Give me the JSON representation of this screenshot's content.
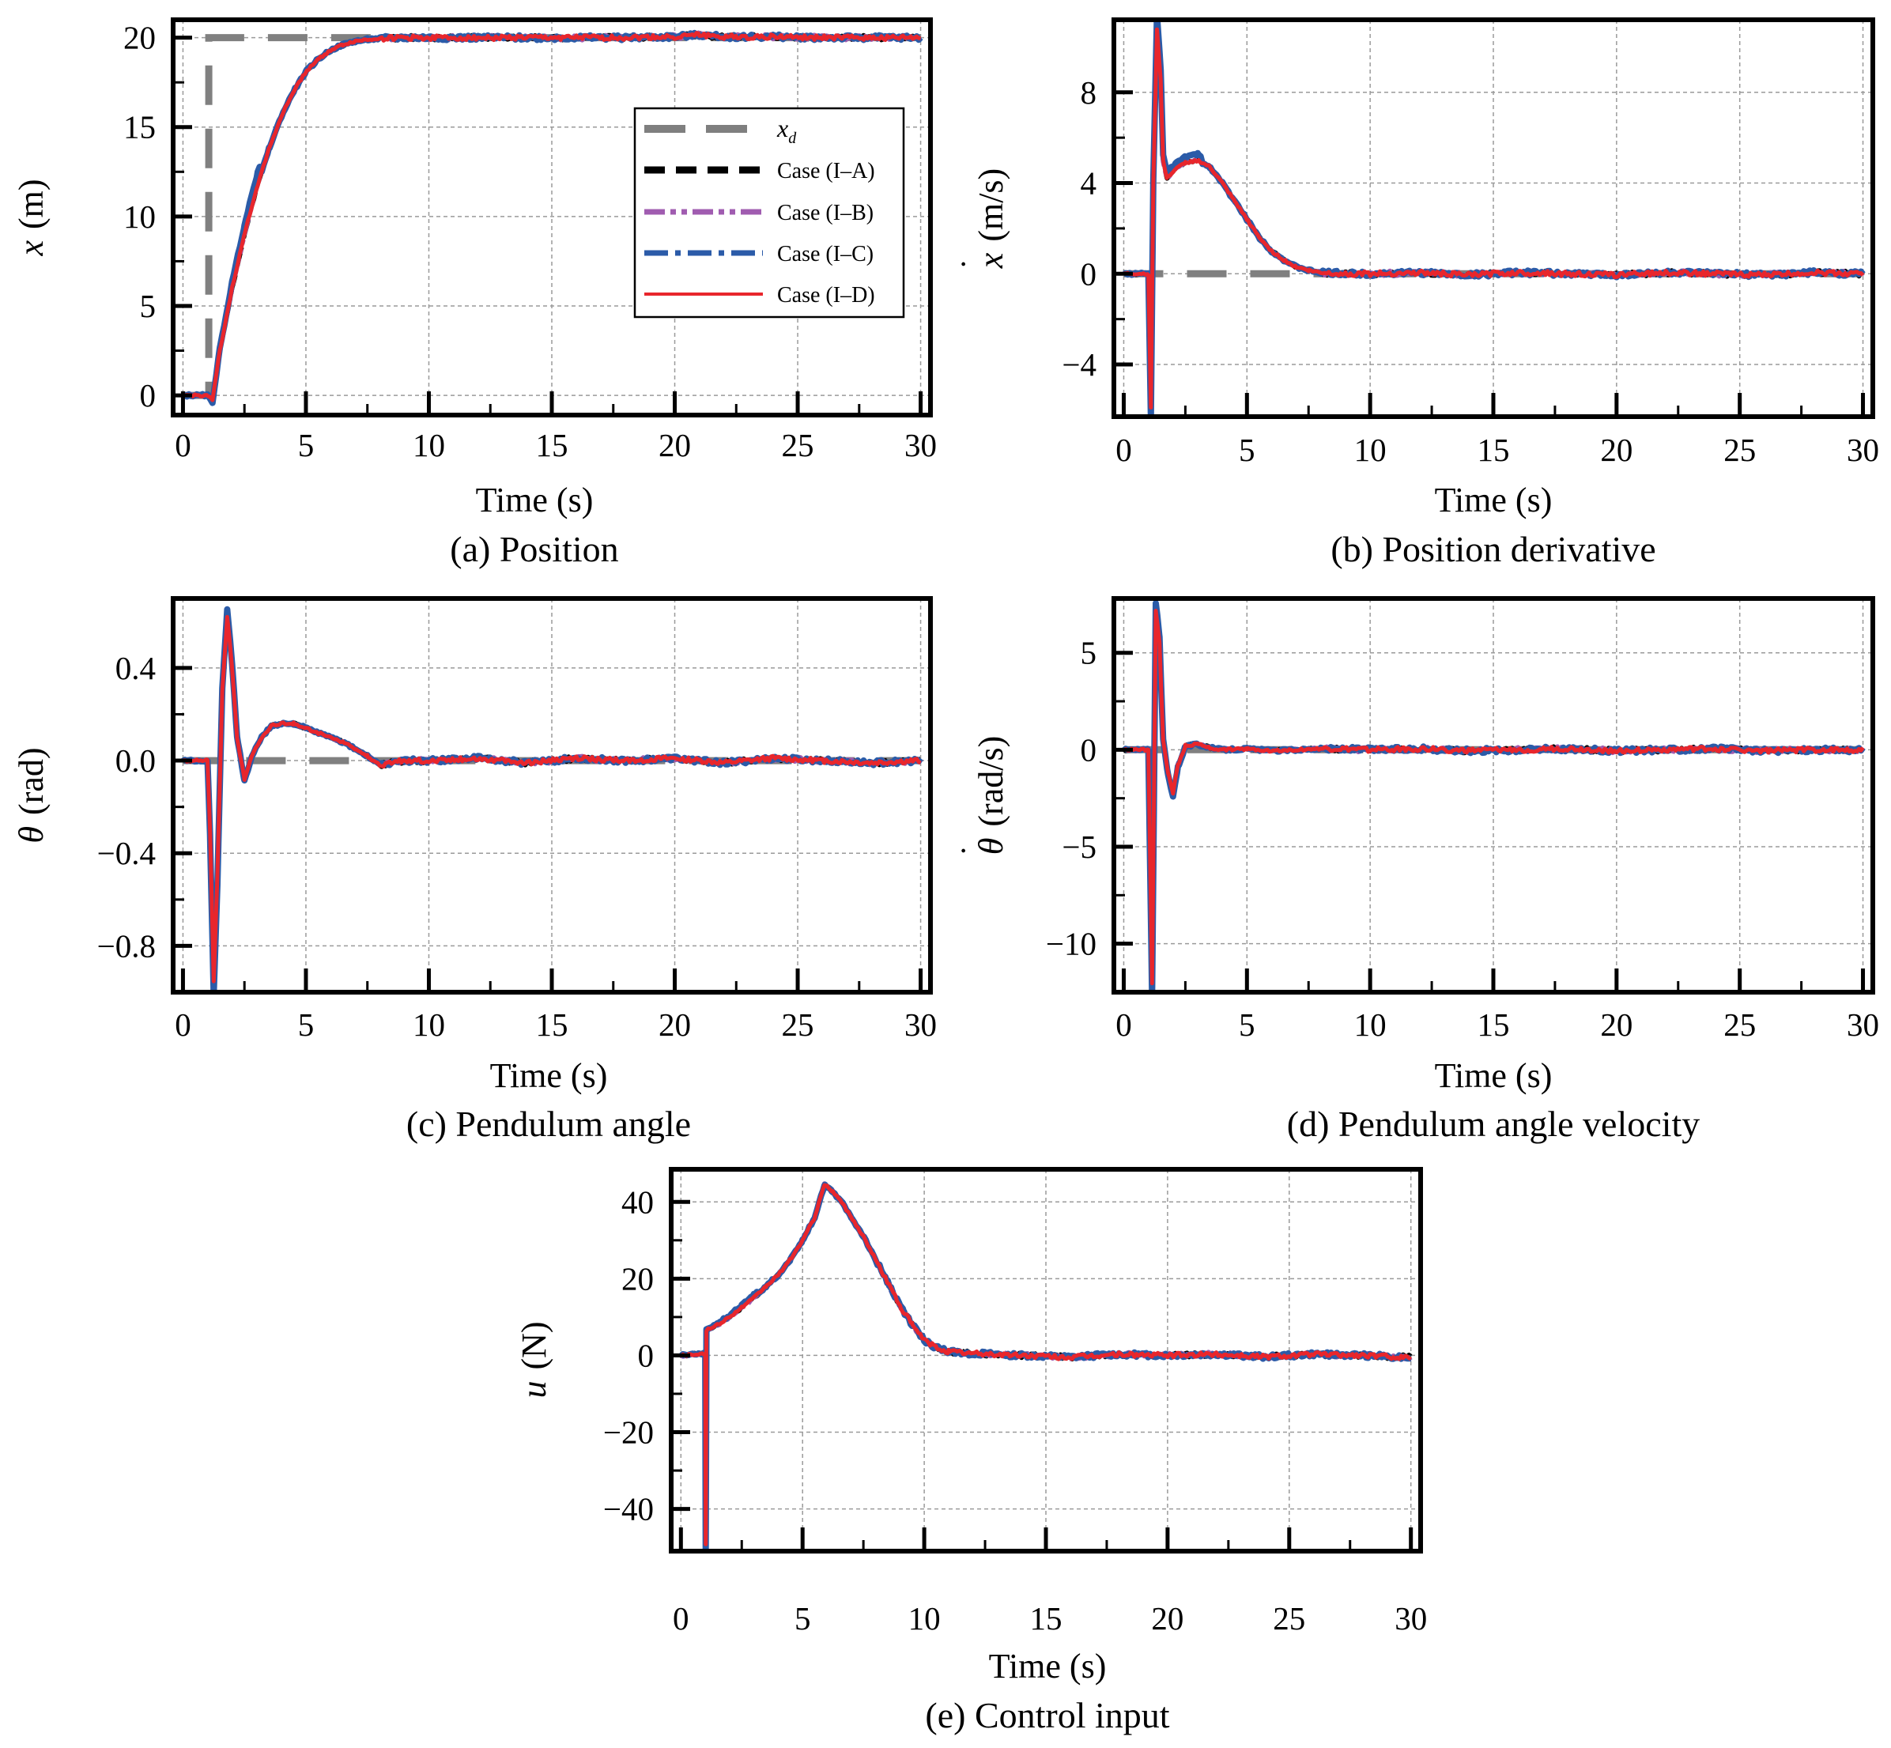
{
  "figure": {
    "legend": {
      "entries": [
        {
          "key": "xd",
          "label": "x",
          "label_sub": "d",
          "color": "#7f7f7f",
          "style": "dashed-long"
        },
        {
          "key": "IA",
          "label": "Case (I–A)",
          "color": "#000000",
          "style": "dashed"
        },
        {
          "key": "IB",
          "label": "Case (I–B)",
          "color": "#a05cb0",
          "style": "dash-dot-dot"
        },
        {
          "key": "IC",
          "label": "Case (I–C)",
          "color": "#2b5ba8",
          "style": "dash-dot"
        },
        {
          "key": "ID",
          "label": "Case (I–D)",
          "color": "#e8262c",
          "style": "solid"
        }
      ]
    }
  },
  "chart_data": [
    {
      "id": "a",
      "type": "line",
      "caption": "(a) Position",
      "xlabel": "Time (s)",
      "ylabel": "x",
      "ylabel_unit": "(m)",
      "ylabel_dot": false,
      "xlim": [
        -0.4,
        30.4
      ],
      "ylim": [
        -1.1,
        21
      ],
      "xticks": [
        0,
        5,
        10,
        15,
        20,
        25,
        30
      ],
      "yticks": [
        0,
        5,
        10,
        15,
        20
      ],
      "ytick_labels": [
        "0",
        "5",
        "10",
        "15",
        "20"
      ],
      "reference": {
        "t": [
          0,
          1.05,
          1.05,
          30
        ],
        "y": [
          0,
          0,
          20,
          20
        ]
      },
      "trajectory": {
        "t": [
          0,
          1.0,
          1.2,
          1.5,
          2,
          2.5,
          3,
          3.5,
          4,
          4.5,
          5,
          5.5,
          6,
          6.5,
          7,
          7.5,
          8,
          9,
          10,
          12,
          14,
          16,
          18,
          20,
          21,
          22,
          24,
          26,
          28,
          30
        ],
        "y": [
          0,
          0,
          -0.3,
          2.5,
          6,
          9,
          11.6,
          13.8,
          15.6,
          17,
          18.1,
          18.8,
          19.3,
          19.6,
          19.8,
          19.9,
          19.95,
          20,
          20,
          20,
          20,
          20,
          20,
          20.05,
          20.15,
          20.05,
          20.05,
          20,
          20,
          20
        ]
      },
      "has_legend": true
    },
    {
      "id": "b",
      "type": "line",
      "caption": "(b) Position derivative",
      "xlabel": "Time (s)",
      "ylabel": "x",
      "ylabel_unit": "(m/s)",
      "ylabel_dot": true,
      "xlim": [
        -0.4,
        30.4
      ],
      "ylim": [
        -6.3,
        11.2
      ],
      "xticks": [
        0,
        5,
        10,
        15,
        20,
        25,
        30
      ],
      "yticks": [
        -4,
        0,
        4,
        8
      ],
      "ytick_labels": [
        "−4",
        "0",
        "4",
        "8"
      ],
      "reference": {
        "t": [
          0,
          30
        ],
        "y": [
          0,
          0
        ]
      },
      "trajectory": {
        "t": [
          0,
          1.0,
          1.1,
          1.2,
          1.35,
          1.5,
          1.6,
          1.75,
          1.9,
          2.1,
          2.5,
          3,
          3.5,
          4,
          4.5,
          5,
          5.5,
          6,
          6.5,
          7,
          7.5,
          8,
          9,
          10,
          12,
          14,
          16,
          18,
          20,
          22,
          24,
          26,
          28,
          30
        ],
        "y": [
          0,
          0,
          -5.9,
          4,
          10.8,
          8.5,
          5,
          4.2,
          4.4,
          4.6,
          4.9,
          5.0,
          4.7,
          4.0,
          3.2,
          2.4,
          1.6,
          1.0,
          0.6,
          0.3,
          0.15,
          0.05,
          0,
          0,
          0.05,
          -0.05,
          0.05,
          0,
          -0.05,
          0.05,
          0,
          -0.05,
          0.05,
          0
        ]
      },
      "has_legend": false
    },
    {
      "id": "c",
      "type": "line",
      "caption": "(c) Pendulum angle",
      "xlabel": "Time (s)",
      "ylabel": "θ",
      "ylabel_unit": "(rad)",
      "ylabel_dot": false,
      "xlim": [
        -0.4,
        30.4
      ],
      "ylim": [
        -1.0,
        0.7
      ],
      "xticks": [
        0,
        5,
        10,
        15,
        20,
        25,
        30
      ],
      "yticks": [
        -0.8,
        -0.4,
        0.0,
        0.4
      ],
      "ytick_labels": [
        "−0.8",
        "−0.4",
        "0.0",
        "0.4"
      ],
      "reference": {
        "t": [
          0,
          30
        ],
        "y": [
          0,
          0
        ]
      },
      "trajectory": {
        "t": [
          0,
          1.0,
          1.1,
          1.25,
          1.4,
          1.6,
          1.8,
          2.0,
          2.2,
          2.5,
          2.8,
          3.2,
          3.6,
          4.0,
          4.5,
          5.0,
          5.5,
          6.0,
          6.5,
          7.0,
          7.5,
          8.0,
          9,
          10,
          12,
          14,
          16,
          18,
          20,
          22,
          24,
          26,
          28,
          30
        ],
        "y": [
          0,
          0,
          -0.3,
          -0.95,
          -0.5,
          0.3,
          0.62,
          0.4,
          0.1,
          -0.08,
          0.02,
          0.1,
          0.15,
          0.16,
          0.16,
          0.14,
          0.12,
          0.1,
          0.08,
          0.05,
          0.02,
          -0.02,
          0,
          0,
          0.01,
          -0.01,
          0.01,
          0,
          0.01,
          -0.01,
          0.01,
          0,
          -0.01,
          0
        ]
      },
      "has_legend": false
    },
    {
      "id": "d",
      "type": "line",
      "caption": "(d) Pendulum angle velocity",
      "xlabel": "Time (s)",
      "ylabel": "θ",
      "ylabel_unit": "(rad/s)",
      "ylabel_dot": true,
      "xlim": [
        -0.4,
        30.4
      ],
      "ylim": [
        -12.5,
        7.8
      ],
      "xticks": [
        0,
        5,
        10,
        15,
        20,
        25,
        30
      ],
      "yticks": [
        -10,
        -5,
        0,
        5
      ],
      "ytick_labels": [
        "−10",
        "−5",
        "0",
        "5"
      ],
      "reference": {
        "t": [
          0,
          30
        ],
        "y": [
          0,
          0
        ]
      },
      "trajectory": {
        "t": [
          0,
          1.0,
          1.05,
          1.15,
          1.3,
          1.45,
          1.6,
          1.8,
          2.0,
          2.2,
          2.5,
          3.0,
          3.5,
          4.0,
          5,
          6,
          8,
          10,
          12,
          14,
          16,
          18,
          20,
          22,
          24,
          26,
          28,
          30
        ],
        "y": [
          0,
          0,
          -4,
          -12,
          7.2,
          5.5,
          0.5,
          -1.2,
          -2.2,
          -0.8,
          0.2,
          0.3,
          0.1,
          0,
          0.05,
          -0.05,
          0.05,
          0,
          0.05,
          -0.05,
          0,
          0.05,
          -0.05,
          0,
          0.05,
          -0.05,
          0,
          0
        ]
      },
      "has_legend": false
    },
    {
      "id": "e",
      "type": "line",
      "caption": "(e) Control input",
      "xlabel": "Time (s)",
      "ylabel": "u",
      "ylabel_unit": "(N)",
      "ylabel_dot": false,
      "xlim": [
        -0.4,
        30.4
      ],
      "ylim": [
        -51,
        48.5
      ],
      "xticks": [
        0,
        5,
        10,
        15,
        20,
        25,
        30
      ],
      "yticks": [
        -40,
        -20,
        0,
        20,
        40
      ],
      "ytick_labels": [
        "−40",
        "−20",
        "0",
        "20",
        "40"
      ],
      "reference": null,
      "trajectory": {
        "t": [
          0,
          0.9,
          1.0,
          1.02,
          1.05,
          1.2,
          1.5,
          2,
          2.5,
          3,
          3.5,
          4,
          4.5,
          5,
          5.5,
          5.9,
          6.2,
          6.6,
          7.0,
          7.5,
          8.0,
          8.5,
          9.0,
          9.5,
          10.0,
          10.5,
          11,
          12,
          14,
          16,
          18,
          20,
          22,
          24,
          26,
          28,
          30
        ],
        "y": [
          0,
          0.5,
          0.5,
          -49,
          6.5,
          7,
          8,
          10,
          12.5,
          15,
          18,
          21,
          25,
          30,
          36,
          44.5,
          43,
          40,
          36,
          31,
          25,
          19,
          13,
          8,
          4,
          2,
          1,
          0.5,
          0,
          -0.5,
          0.3,
          0,
          0.3,
          -0.3,
          0.3,
          0,
          -0.5
        ]
      },
      "has_legend": false
    }
  ]
}
